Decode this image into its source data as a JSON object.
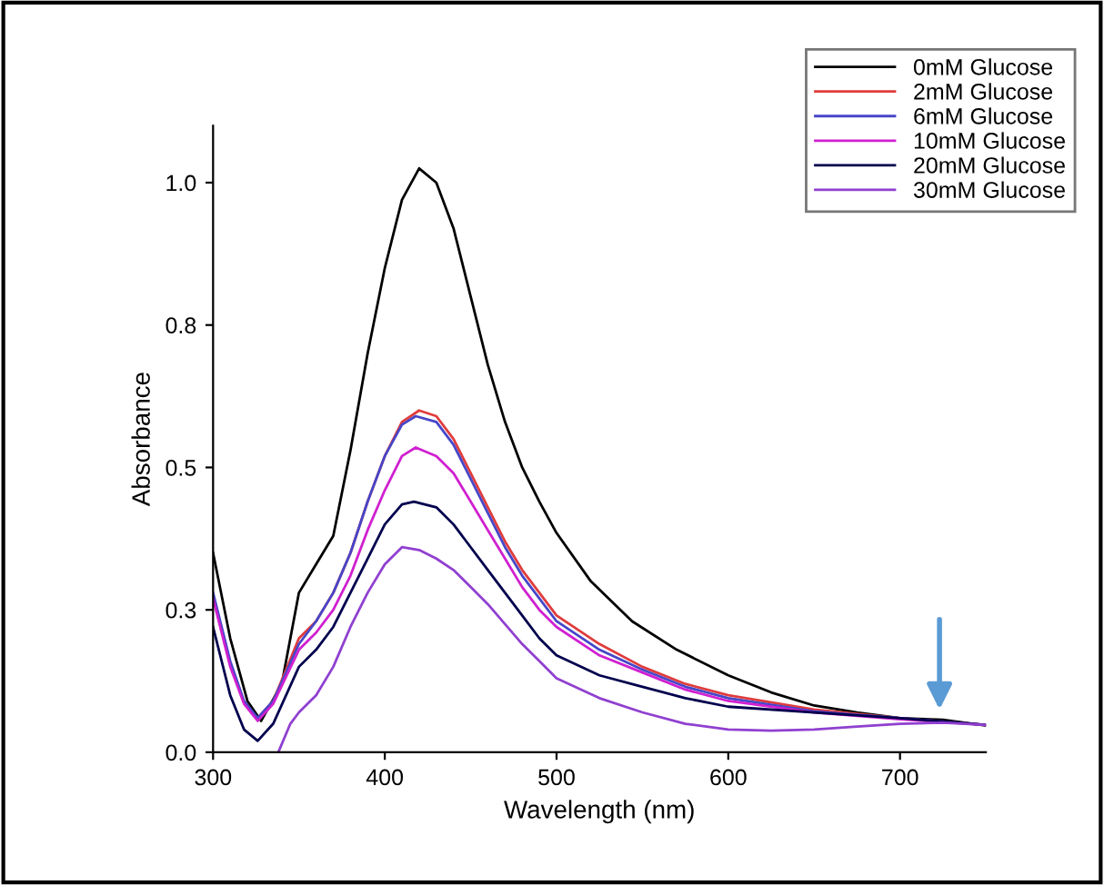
{
  "chart_data": {
    "type": "line",
    "xlabel": "Wavelength (nm)",
    "ylabel": "Absorbance",
    "xlim": [
      300,
      750
    ],
    "xticks": [
      300,
      400,
      500,
      600,
      700
    ],
    "ylim": [
      0,
      1.1
    ],
    "yticks": [
      {
        "value": 0,
        "label": "0.0"
      },
      {
        "value": 0.25,
        "label": "0.3"
      },
      0.5,
      {
        "value": 0.75,
        "label": "0.8"
      },
      {
        "value": 1,
        "label": "1.0"
      }
    ],
    "grid": false,
    "legend": "top right",
    "marker": "none",
    "line_style": "solid",
    "series": [
      {
        "name": "0mM Glucose",
        "color": "#000000",
        "x": [
          300,
          310,
          320,
          328,
          340,
          350,
          360,
          370,
          380,
          390,
          400,
          410,
          420,
          430,
          440,
          450,
          460,
          470,
          480,
          490,
          500,
          520,
          544,
          570,
          600,
          625,
          650,
          675,
          700,
          725,
          750
        ],
        "values": [
          0.35,
          0.2,
          0.09,
          0.055,
          0.12,
          0.28,
          0.33,
          0.38,
          0.53,
          0.7,
          0.85,
          0.97,
          1.025,
          1.0,
          0.92,
          0.8,
          0.68,
          0.58,
          0.5,
          0.44,
          0.385,
          0.3,
          0.23,
          0.18,
          0.135,
          0.105,
          0.082,
          0.07,
          0.06,
          0.057,
          0.047
        ]
      },
      {
        "name": "2mM Glucose",
        "color": "#e03c3c",
        "x": [
          326,
          335,
          350,
          360,
          370,
          380,
          390,
          400,
          410,
          420,
          430,
          440,
          450,
          460,
          470,
          480,
          490,
          500,
          525,
          550,
          575,
          600,
          650,
          700,
          750
        ],
        "values": [
          0.06,
          0.09,
          0.2,
          0.23,
          0.28,
          0.35,
          0.44,
          0.52,
          0.58,
          0.6,
          0.59,
          0.55,
          0.49,
          0.43,
          0.37,
          0.32,
          0.28,
          0.24,
          0.19,
          0.15,
          0.12,
          0.1,
          0.075,
          0.06,
          0.048
        ]
      },
      {
        "name": "6mM Glucose",
        "color": "#4646c8",
        "x": [
          300,
          310,
          318,
          326,
          335,
          350,
          360,
          370,
          380,
          390,
          400,
          410,
          418,
          430,
          440,
          450,
          460,
          470,
          480,
          490,
          500,
          525,
          550,
          575,
          600,
          650,
          700,
          750
        ],
        "values": [
          0.28,
          0.16,
          0.09,
          0.06,
          0.09,
          0.19,
          0.23,
          0.28,
          0.35,
          0.44,
          0.52,
          0.575,
          0.59,
          0.58,
          0.54,
          0.48,
          0.42,
          0.36,
          0.31,
          0.27,
          0.23,
          0.18,
          0.145,
          0.115,
          0.095,
          0.072,
          0.06,
          0.048
        ]
      },
      {
        "name": "10mM Glucose",
        "color": "#d020d0",
        "x": [
          300,
          310,
          318,
          326,
          335,
          350,
          360,
          370,
          380,
          390,
          400,
          410,
          418,
          430,
          440,
          450,
          460,
          470,
          480,
          490,
          500,
          525,
          550,
          575,
          600,
          650,
          700,
          750
        ],
        "values": [
          0.27,
          0.15,
          0.085,
          0.055,
          0.085,
          0.18,
          0.21,
          0.25,
          0.31,
          0.39,
          0.46,
          0.52,
          0.535,
          0.52,
          0.49,
          0.44,
          0.39,
          0.34,
          0.29,
          0.25,
          0.22,
          0.17,
          0.14,
          0.11,
          0.09,
          0.07,
          0.058,
          0.048
        ]
      },
      {
        "name": "20mM Glucose",
        "color": "#00004e",
        "x": [
          300,
          310,
          318,
          326,
          335,
          350,
          360,
          370,
          380,
          390,
          400,
          410,
          417,
          430,
          440,
          450,
          460,
          470,
          480,
          490,
          500,
          525,
          550,
          575,
          600,
          650,
          700,
          750
        ],
        "values": [
          0.22,
          0.1,
          0.04,
          0.02,
          0.05,
          0.15,
          0.18,
          0.22,
          0.28,
          0.34,
          0.4,
          0.435,
          0.44,
          0.43,
          0.4,
          0.36,
          0.32,
          0.28,
          0.24,
          0.2,
          0.17,
          0.135,
          0.115,
          0.095,
          0.08,
          0.07,
          0.06,
          0.048
        ]
      },
      {
        "name": "30mM Glucose",
        "color": "#9040d0",
        "x": [
          338,
          345,
          350,
          360,
          370,
          380,
          390,
          400,
          410,
          420,
          430,
          440,
          450,
          460,
          470,
          480,
          490,
          500,
          525,
          550,
          575,
          600,
          625,
          650,
          675,
          700,
          725,
          750
        ],
        "values": [
          0.0,
          0.05,
          0.07,
          0.1,
          0.15,
          0.22,
          0.28,
          0.33,
          0.36,
          0.355,
          0.34,
          0.32,
          0.29,
          0.26,
          0.225,
          0.19,
          0.16,
          0.13,
          0.095,
          0.07,
          0.05,
          0.04,
          0.038,
          0.04,
          0.045,
          0.05,
          0.052,
          0.048
        ]
      }
    ]
  }
}
